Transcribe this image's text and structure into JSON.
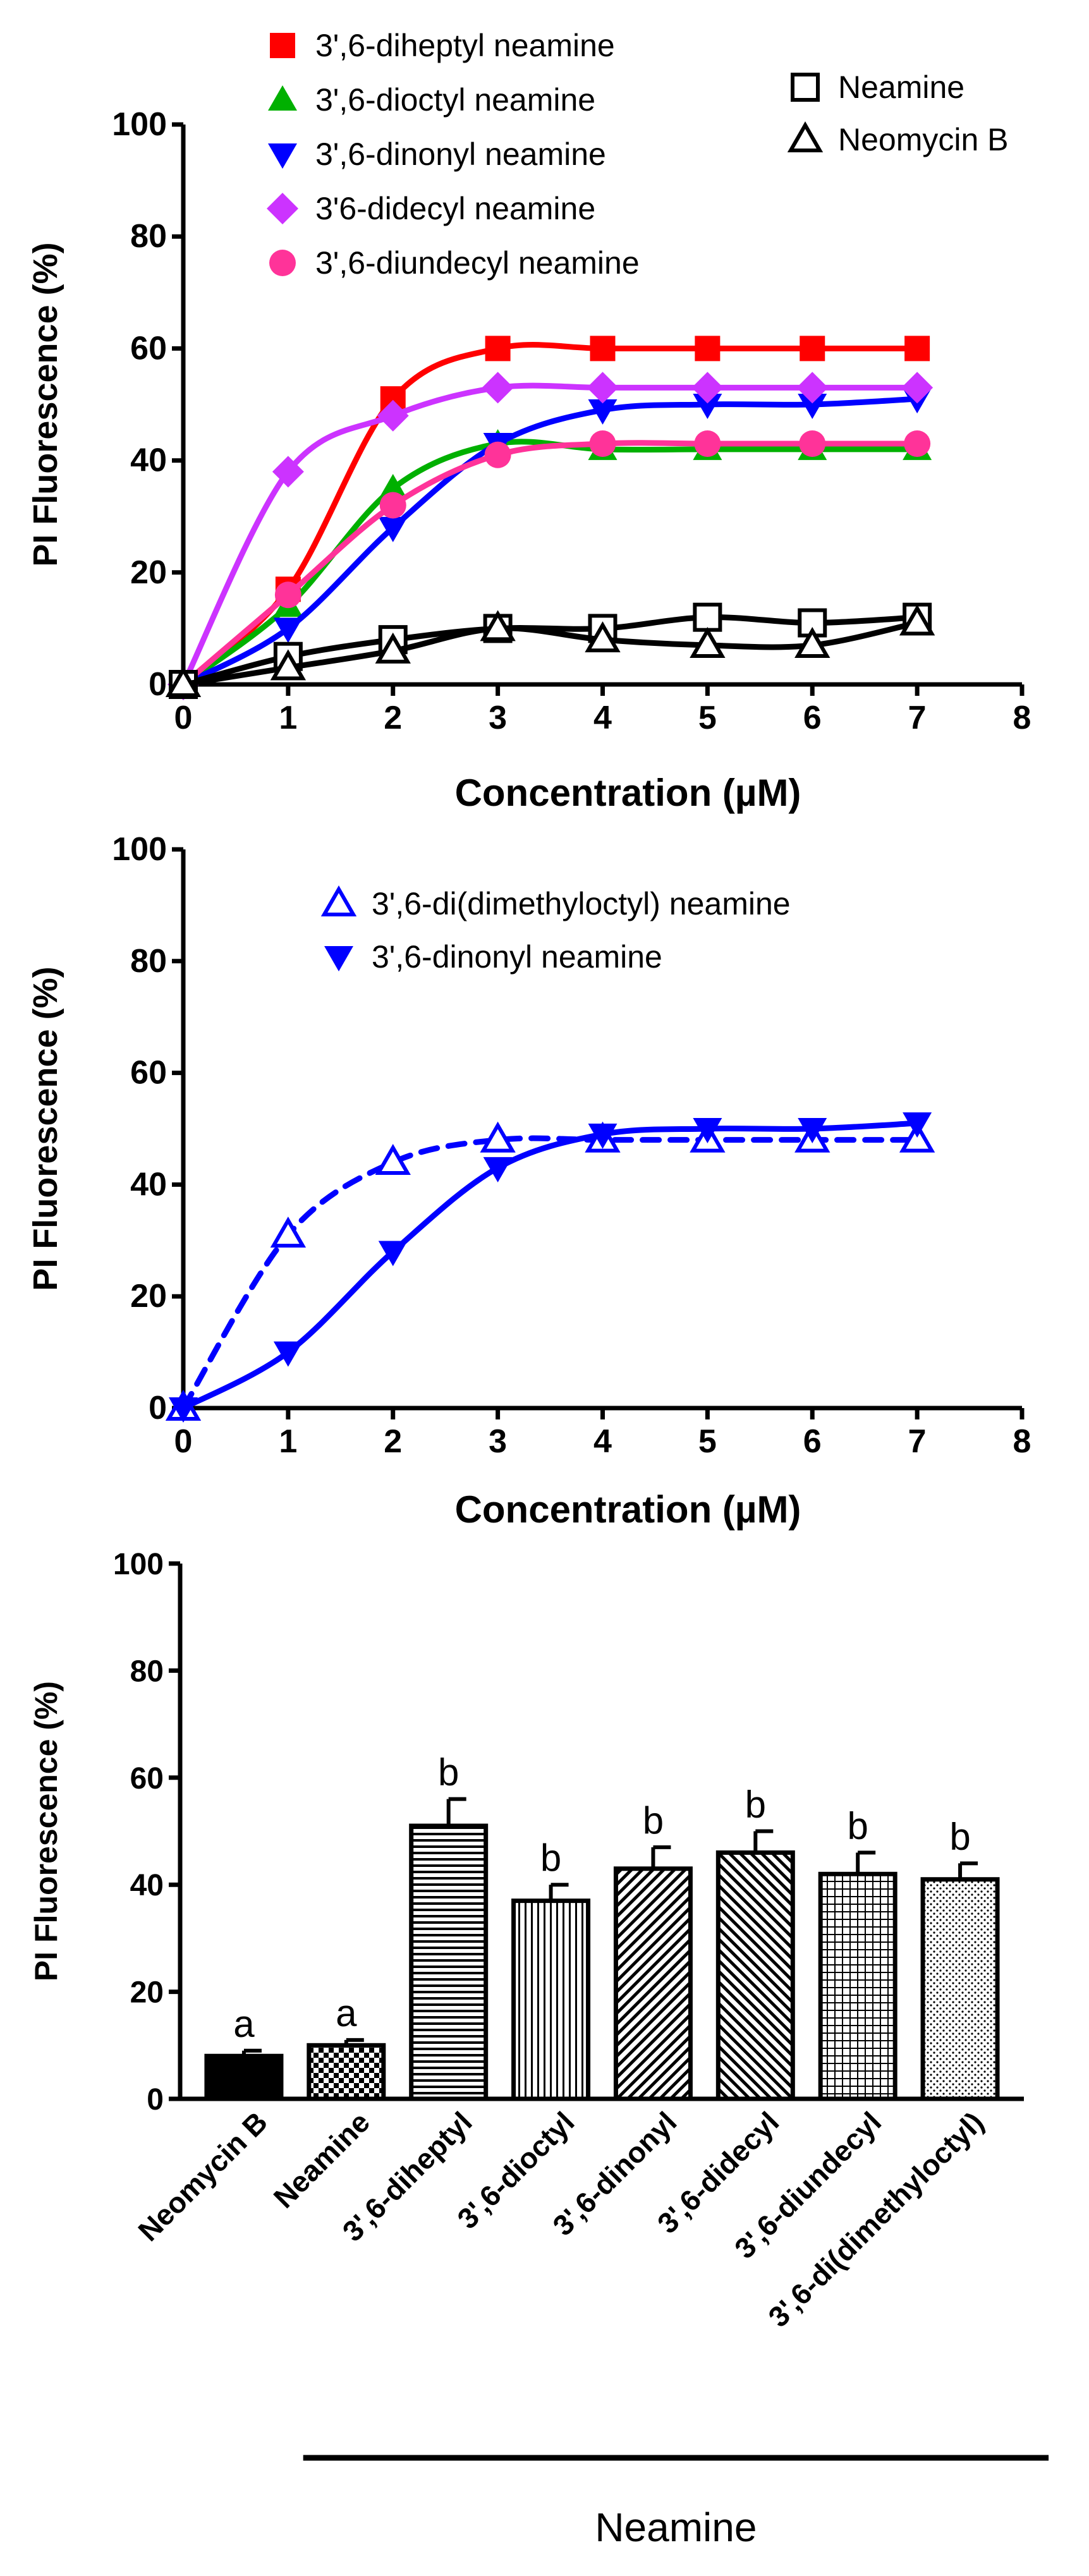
{
  "chart_data": [
    {
      "type": "line",
      "id": "panel-a",
      "xlabel": "Concentration  (µM)",
      "ylabel": "PI Fluorescence (%)",
      "xlim": [
        0,
        8
      ],
      "ylim": [
        0,
        100
      ],
      "xticks": [
        "0",
        "1",
        "2",
        "3",
        "4",
        "5",
        "6",
        "7",
        "8"
      ],
      "yticks": [
        "0",
        "20",
        "40",
        "60",
        "80",
        "100"
      ],
      "legend_left_placement": "top-left",
      "legend_right_placement": "top-right",
      "series": [
        {
          "name": "3',6-diheptyl neamine",
          "color": "#ff0000",
          "marker": "square-filled",
          "x": [
            0,
            1,
            2,
            3,
            4,
            5,
            6,
            7
          ],
          "y": [
            0,
            17,
            51,
            60,
            60,
            60,
            60,
            60
          ]
        },
        {
          "name": "3',6-dioctyl neamine",
          "color": "#00b000",
          "marker": "triangle-up-filled",
          "x": [
            0,
            1,
            2,
            3,
            4,
            5,
            6,
            7
          ],
          "y": [
            0,
            14,
            35,
            43,
            42,
            42,
            42,
            42
          ]
        },
        {
          "name": "3',6-dinonyl neamine",
          "color": "#0000ff",
          "marker": "triangle-down-filled",
          "x": [
            0,
            1,
            2,
            3,
            4,
            5,
            6,
            7
          ],
          "y": [
            0,
            10,
            28,
            43,
            49,
            50,
            50,
            51
          ]
        },
        {
          "name": "3'6-didecyl neamine",
          "color": "#cc33ff",
          "marker": "diamond-filled",
          "x": [
            0,
            1,
            2,
            3,
            4,
            5,
            6,
            7
          ],
          "y": [
            0,
            38,
            48,
            53,
            53,
            53,
            53,
            53
          ]
        },
        {
          "name": "3',6-diundecyl neamine",
          "color": "#ff3399",
          "marker": "circle-filled",
          "x": [
            0,
            1,
            2,
            3,
            4,
            5,
            6,
            7
          ],
          "y": [
            0,
            16,
            32,
            41,
            43,
            43,
            43,
            43
          ]
        },
        {
          "name": "Neamine",
          "color": "#000000",
          "marker": "square-open",
          "x": [
            0,
            1,
            2,
            3,
            4,
            5,
            6,
            7
          ],
          "y": [
            0,
            5,
            8,
            10,
            10,
            12,
            11,
            12
          ]
        },
        {
          "name": "Neomycin B",
          "color": "#000000",
          "marker": "triangle-up-open",
          "x": [
            0,
            1,
            2,
            3,
            4,
            5,
            6,
            7
          ],
          "y": [
            0,
            3,
            6,
            10,
            8,
            7,
            7,
            11
          ]
        }
      ]
    },
    {
      "type": "line",
      "id": "panel-b",
      "xlabel": "Concentration (µM)",
      "ylabel": "PI Fluorescence (%)",
      "xlim": [
        0,
        8
      ],
      "ylim": [
        0,
        100
      ],
      "xticks": [
        "0",
        "1",
        "2",
        "3",
        "4",
        "5",
        "6",
        "7",
        "8"
      ],
      "yticks": [
        "0",
        "20",
        "40",
        "60",
        "80",
        "100"
      ],
      "legend_placement": "top-right",
      "series": [
        {
          "name": "3',6-di(dimethyloctyl) neamine",
          "color": "#0000ff",
          "marker": "triangle-up-open",
          "line": "dashed",
          "x": [
            0,
            1,
            2,
            3,
            4,
            5,
            6,
            7
          ],
          "y": [
            0,
            31,
            44,
            48,
            48,
            48,
            48,
            48
          ]
        },
        {
          "name": "3',6-dinonyl neamine",
          "color": "#0000ff",
          "marker": "triangle-down-filled",
          "line": "solid",
          "x": [
            0,
            1,
            2,
            3,
            4,
            5,
            6,
            7
          ],
          "y": [
            0,
            10,
            28,
            43,
            49,
            50,
            50,
            51
          ]
        }
      ]
    },
    {
      "type": "bar",
      "id": "panel-c",
      "ylabel": "PI Fluorescence (%)",
      "ylim": [
        0,
        100
      ],
      "yticks": [
        "0",
        "20",
        "40",
        "60",
        "80",
        "100"
      ],
      "categories": [
        "Neomycin B",
        "Neamine",
        "3',6-diheptyl",
        "3',6-dioctyl",
        "3',6-dinonyl",
        "3',6-didecyl",
        "3',6-diundecyl",
        "3',6-di(dimethyloctyl)"
      ],
      "values": [
        8,
        10,
        51,
        37,
        43,
        46,
        42,
        41
      ],
      "errors": [
        1,
        1,
        5,
        3,
        4,
        4,
        4,
        3
      ],
      "significance": [
        "a",
        "a",
        "b",
        "b",
        "b",
        "b",
        "b",
        "b"
      ],
      "patterns": [
        "solid",
        "checker",
        "hstripe",
        "vstripe",
        "diag-right",
        "diag-left",
        "grid",
        "dots"
      ],
      "group_label": "Neamine",
      "group_range": [
        2,
        7
      ]
    }
  ]
}
